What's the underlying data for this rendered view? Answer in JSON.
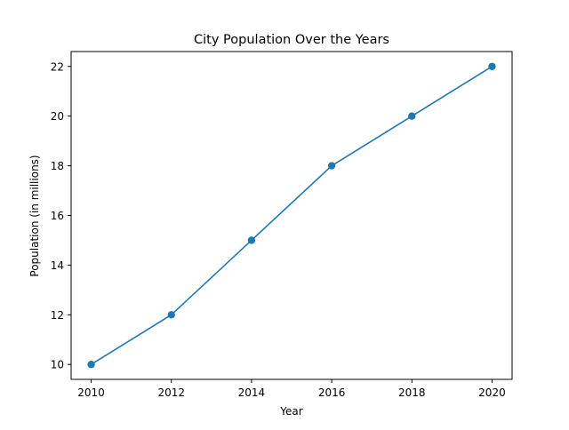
{
  "chart_data": {
    "type": "line",
    "title": "City Population Over the Years",
    "xlabel": "Year",
    "ylabel": "Population (in millions)",
    "x": [
      2010,
      2012,
      2014,
      2016,
      2018,
      2020
    ],
    "series": [
      {
        "values": [
          10,
          12,
          15,
          18,
          20,
          22
        ],
        "color": "#1f77b4",
        "marker": "circle"
      }
    ],
    "xlim": [
      2009.5,
      2020.5
    ],
    "ylim": [
      9.4,
      22.6
    ],
    "xticks": [
      2010,
      2012,
      2014,
      2016,
      2018,
      2020
    ],
    "yticks": [
      10,
      12,
      14,
      16,
      18,
      20,
      22
    ],
    "grid": false,
    "legend": "none"
  }
}
